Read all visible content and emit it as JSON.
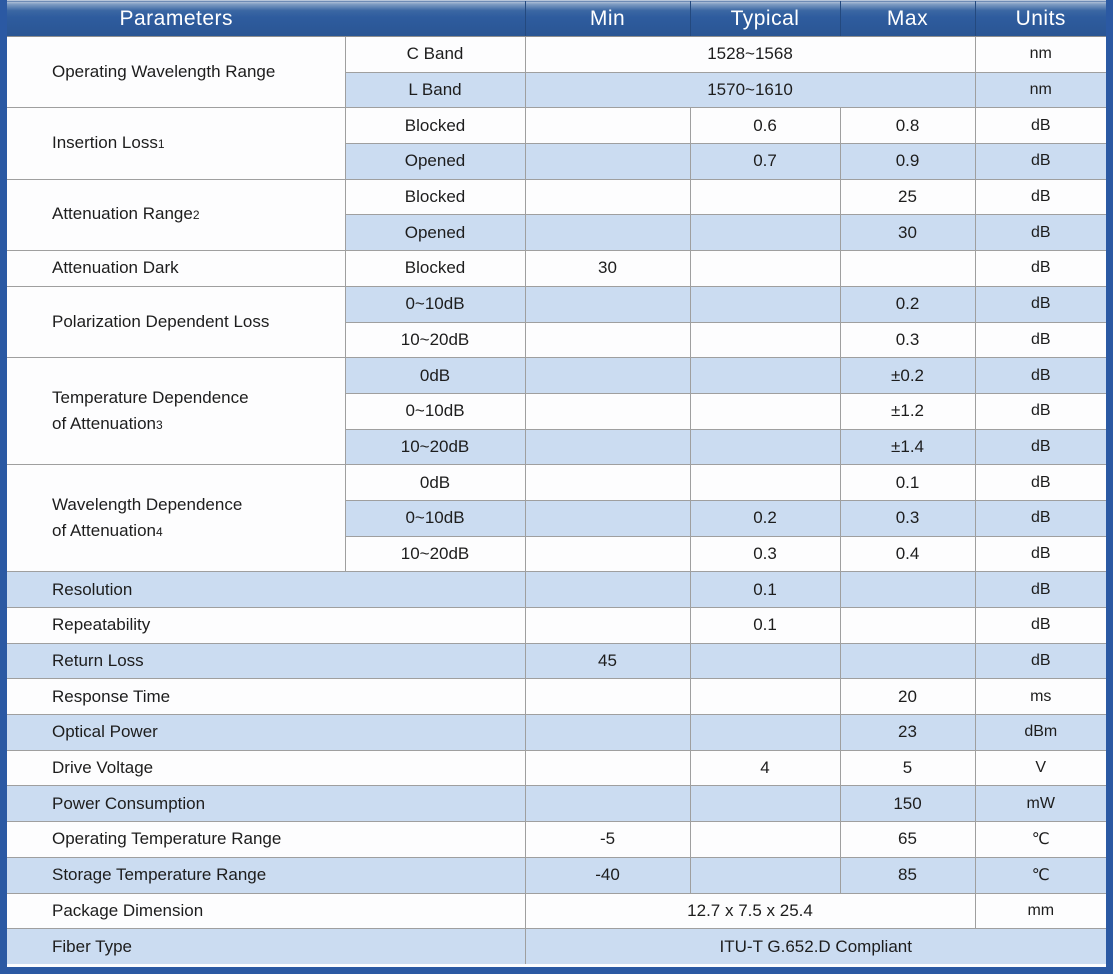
{
  "header": {
    "parameters": "Parameters",
    "min": "Min",
    "typical": "Typical",
    "max": "Max",
    "units": "Units"
  },
  "colors": {
    "header_blue": "#2e5c9e",
    "row_blue": "#cbdcf1",
    "frame_blue": "#2b59a3",
    "grid_gray": "#9f9f9f",
    "header_text": "#ffffff",
    "body_text": "#1d1d1d"
  },
  "rows": [
    {
      "param": "Operating Wavelength Range",
      "sub": "C Band",
      "span": "1528~1568",
      "units": "nm"
    },
    {
      "sub": "L Band",
      "span": "1570~1610",
      "units": "nm"
    },
    {
      "param": "Insertion Loss",
      "param_note": "1",
      "sub": "Blocked",
      "typ": "0.6",
      "max": "0.8",
      "units": "dB"
    },
    {
      "sub": "Opened",
      "typ": "0.7",
      "max": "0.9",
      "units": "dB"
    },
    {
      "param": "Attenuation Range",
      "param_note": "2",
      "sub": "Blocked",
      "max": "25",
      "units": "dB"
    },
    {
      "sub": "Opened",
      "max": "30",
      "units": "dB"
    },
    {
      "param": "Attenuation Dark",
      "sub": "Blocked",
      "min": "30",
      "units": "dB"
    },
    {
      "param": "Polarization Dependent Loss",
      "sub": "0~10dB",
      "max": "0.2",
      "units": "dB"
    },
    {
      "sub": "10~20dB",
      "max": "0.3",
      "units": "dB"
    },
    {
      "param_line1": "Temperature Dependence",
      "param_line2": "of Attenuation",
      "param_note": "3",
      "sub": "0dB",
      "max": "±0.2",
      "units": "dB"
    },
    {
      "sub": "0~10dB",
      "max": "±1.2",
      "units": "dB"
    },
    {
      "sub": "10~20dB",
      "max": "±1.4",
      "units": "dB"
    },
    {
      "param_line1": "Wavelength Dependence",
      "param_line2": "of Attenuation",
      "param_note": "4",
      "sub": "0dB",
      "max": "0.1",
      "units": "dB"
    },
    {
      "sub": "0~10dB",
      "typ": "0.2",
      "max": "0.3",
      "units": "dB"
    },
    {
      "sub": "10~20dB",
      "typ": "0.3",
      "max": "0.4",
      "units": "dB"
    },
    {
      "param": "Resolution",
      "typ": "0.1",
      "units": "dB"
    },
    {
      "param": "Repeatability",
      "typ": "0.1",
      "units": "dB"
    },
    {
      "param": "Return Loss",
      "min": "45",
      "units": "dB"
    },
    {
      "param": "Response Time",
      "max": "20",
      "units": "ms"
    },
    {
      "param": "Optical Power",
      "max": "23",
      "units": "dBm"
    },
    {
      "param": "Drive Voltage",
      "typ": "4",
      "max": "5",
      "units": "V"
    },
    {
      "param": "Power Consumption",
      "max": "150",
      "units": "mW"
    },
    {
      "param": "Operating Temperature Range",
      "min": "-5",
      "max": "65",
      "units": "℃"
    },
    {
      "param": "Storage Temperature Range",
      "min": "-40",
      "max": "85",
      "units": "℃"
    },
    {
      "param": "Package Dimension",
      "span": "12.7 x 7.5 x 25.4",
      "units": "mm"
    },
    {
      "param": "Fiber Type",
      "span": "ITU-T G.652.D Compliant"
    }
  ]
}
